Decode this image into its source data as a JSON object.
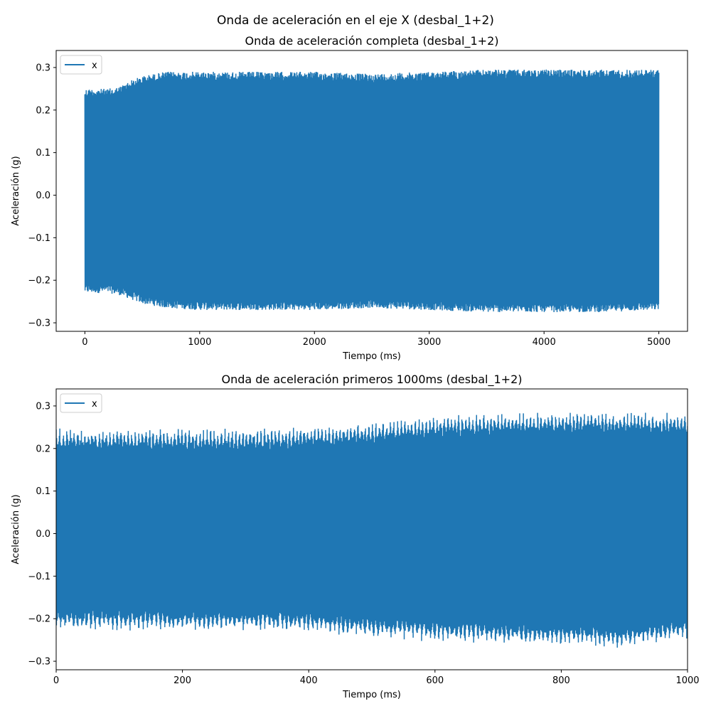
{
  "suptitle": "Onda de aceleración en el eje X (desbal_1+2)",
  "colors": {
    "series": "#1f77b4",
    "axis": "#000000",
    "legend_border": "#cccccc"
  },
  "chart_data": [
    {
      "type": "line",
      "title": "Onda de aceleración completa (desbal_1+2)",
      "xlabel": "Tiempo (ms)",
      "ylabel": "Aceleración (g)",
      "xlim": [
        -250,
        5250
      ],
      "ylim": [
        -0.32,
        0.34
      ],
      "xticks": [
        0,
        1000,
        2000,
        3000,
        4000,
        5000
      ],
      "xtick_labels": [
        "0",
        "1000",
        "2000",
        "3000",
        "4000",
        "5000"
      ],
      "yticks": [
        -0.3,
        -0.2,
        -0.1,
        0.0,
        0.1,
        0.2,
        0.3
      ],
      "ytick_labels": [
        "−0.3",
        "−0.2",
        "−0.1",
        "0.0",
        "0.1",
        "0.2",
        "0.3"
      ],
      "grid": false,
      "legend": {
        "entries": [
          "x"
        ],
        "position": "upper left"
      },
      "series": [
        {
          "name": "x",
          "envelope": {
            "x": [
              0,
              200,
              300,
              400,
              500,
              700,
              1000,
              1500,
              2000,
              2500,
              3000,
              3500,
              4000,
              4500,
              5000
            ],
            "upper": [
              0.25,
              0.25,
              0.255,
              0.27,
              0.28,
              0.29,
              0.29,
              0.29,
              0.29,
              0.285,
              0.29,
              0.295,
              0.295,
              0.295,
              0.295
            ],
            "lower": [
              -0.23,
              -0.23,
              -0.235,
              -0.245,
              -0.255,
              -0.265,
              -0.27,
              -0.27,
              -0.27,
              -0.265,
              -0.27,
              -0.275,
              -0.275,
              -0.275,
              -0.27
            ]
          }
        }
      ]
    },
    {
      "type": "line",
      "title": "Onda de aceleración primeros 1000ms (desbal_1+2)",
      "xlabel": "Tiempo (ms)",
      "ylabel": "Aceleración (g)",
      "xlim": [
        0,
        1000
      ],
      "ylim": [
        -0.32,
        0.34
      ],
      "xticks": [
        0,
        200,
        400,
        600,
        800,
        1000
      ],
      "xtick_labels": [
        "0",
        "200",
        "400",
        "600",
        "800",
        "1000"
      ],
      "yticks": [
        -0.3,
        -0.2,
        -0.1,
        0.0,
        0.1,
        0.2,
        0.3
      ],
      "ytick_labels": [
        "−0.3",
        "−0.2",
        "−0.1",
        "0.0",
        "0.1",
        "0.2",
        "0.3"
      ],
      "grid": false,
      "legend": {
        "entries": [
          "x"
        ],
        "position": "upper left"
      },
      "series": [
        {
          "name": "x",
          "envelope": {
            "x": [
              0,
              100,
              200,
              300,
              400,
              500,
              600,
              700,
              800,
              900,
              1000
            ],
            "upper": [
              0.25,
              0.25,
              0.25,
              0.25,
              0.255,
              0.265,
              0.28,
              0.285,
              0.29,
              0.29,
              0.285
            ],
            "lower": [
              -0.23,
              -0.23,
              -0.23,
              -0.23,
              -0.235,
              -0.245,
              -0.255,
              -0.26,
              -0.265,
              -0.27,
              -0.25
            ]
          }
        }
      ]
    }
  ]
}
